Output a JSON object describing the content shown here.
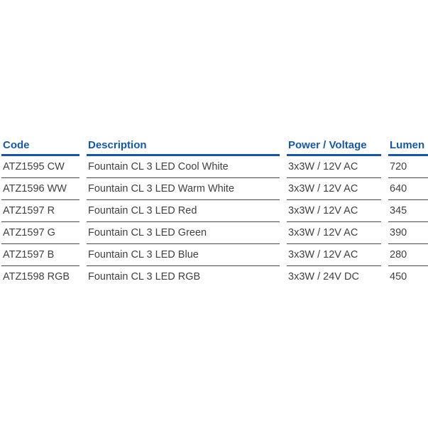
{
  "colors": {
    "header_blue": "#1a57a0",
    "body_text": "#404042",
    "row_line": "#47474a",
    "background": "#ffffff"
  },
  "table": {
    "columns": [
      {
        "key": "code",
        "label": "Code"
      },
      {
        "key": "description",
        "label": "Description"
      },
      {
        "key": "power_voltage",
        "label": "Power / Voltage"
      },
      {
        "key": "lumen",
        "label": "Lumen"
      }
    ],
    "rows": [
      {
        "code": "ATZ1595 CW",
        "description": "Fountain CL 3 LED Cool White",
        "power_voltage": "3x3W / 12V AC",
        "lumen": "720"
      },
      {
        "code": "ATZ1596 WW",
        "description": "Fountain CL 3 LED Warm White",
        "power_voltage": "3x3W / 12V AC",
        "lumen": "640"
      },
      {
        "code": "ATZ1597 R",
        "description": "Fountain CL 3 LED Red",
        "power_voltage": "3x3W / 12V AC",
        "lumen": "345"
      },
      {
        "code": "ATZ1597 G",
        "description": "Fountain CL 3 LED Green",
        "power_voltage": "3x3W / 12V AC",
        "lumen": "390"
      },
      {
        "code": "ATZ1597 B",
        "description": "Fountain CL 3 LED Blue",
        "power_voltage": "3x3W / 12V AC",
        "lumen": "280"
      },
      {
        "code": "ATZ1598 RGB",
        "description": "Fountain CL 3 LED RGB",
        "power_voltage": "3x3W / 24V DC",
        "lumen": "450"
      }
    ]
  }
}
